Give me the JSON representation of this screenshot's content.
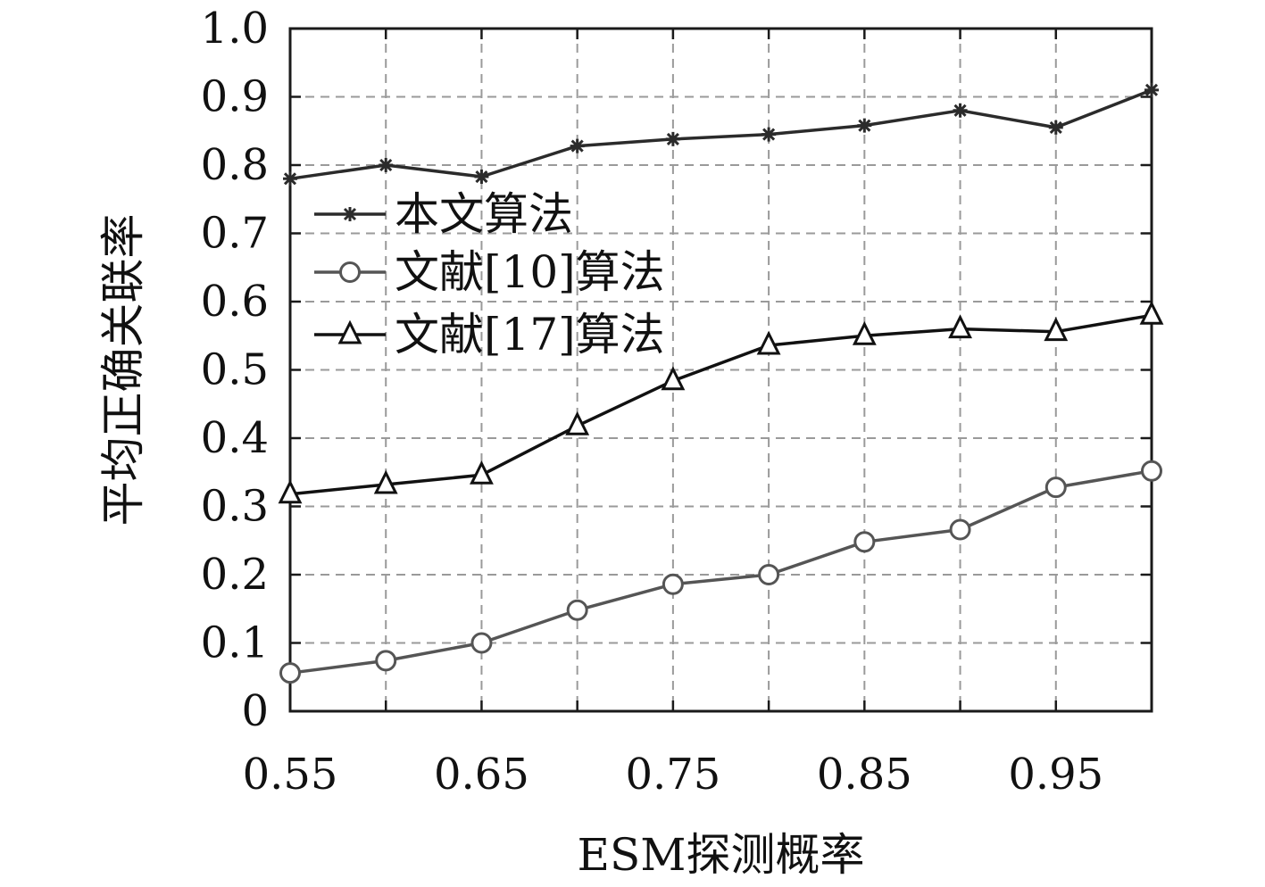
{
  "chart_data": {
    "type": "line",
    "title": "",
    "xlabel": "ESM探测概率",
    "ylabel": "平均正确关联率",
    "xlim": [
      0.55,
      1.0
    ],
    "ylim": [
      0,
      1.0
    ],
    "xticks": [
      0.55,
      0.65,
      0.75,
      0.85,
      0.95
    ],
    "xtick_labels": [
      "0.55",
      "0.65",
      "0.75",
      "0.85",
      "0.95"
    ],
    "yticks": [
      0,
      0.1,
      0.2,
      0.3,
      0.4,
      0.5,
      0.6,
      0.7,
      0.8,
      0.9,
      1.0
    ],
    "ytick_labels": [
      "0",
      "0.1",
      "0.2",
      "0.3",
      "0.4",
      "0.5",
      "0.6",
      "0.7",
      "0.8",
      "0.9",
      "1.0"
    ],
    "grid": true,
    "legend_position": "upper-left",
    "x": [
      0.55,
      0.6,
      0.65,
      0.7,
      0.75,
      0.8,
      0.85,
      0.9,
      0.95,
      1.0
    ],
    "series": [
      {
        "name": "本文算法",
        "marker": "star",
        "color": "#2b2b2b",
        "values": [
          0.78,
          0.8,
          0.783,
          0.828,
          0.838,
          0.845,
          0.858,
          0.88,
          0.855,
          0.91
        ]
      },
      {
        "name": "文献[10]算法",
        "marker": "circle",
        "color": "#555555",
        "values": [
          0.056,
          0.074,
          0.1,
          0.148,
          0.186,
          0.2,
          0.248,
          0.266,
          0.328,
          0.352
        ]
      },
      {
        "name": "文献[17]算法",
        "marker": "triangle",
        "color": "#111111",
        "values": [
          0.318,
          0.332,
          0.346,
          0.418,
          0.484,
          0.536,
          0.55,
          0.56,
          0.556,
          0.58
        ]
      }
    ]
  }
}
